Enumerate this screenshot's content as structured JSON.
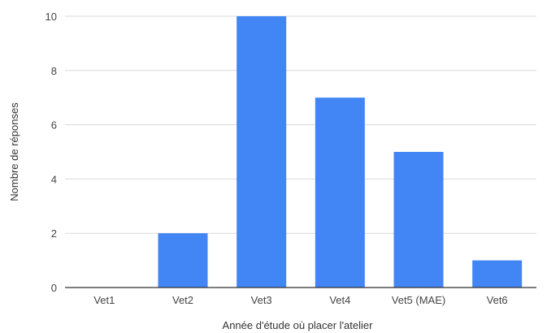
{
  "chart_data": {
    "type": "bar",
    "title": "",
    "xlabel": "Année d'étude où placer l'atelier",
    "ylabel": "Nombre de réponses",
    "categories": [
      "Vet1",
      "Vet2",
      "Vet3",
      "Vet4",
      "Vet5 (MAE)",
      "Vet6"
    ],
    "series": [
      {
        "values": [
          0,
          2,
          10,
          7,
          5,
          1
        ]
      }
    ],
    "ylim": [
      0,
      10
    ],
    "yticks": [
      0,
      2,
      4,
      6,
      8,
      10
    ],
    "grid": true,
    "legend": "none",
    "bar_color": "#4285f4",
    "grid_color": "#d9d9d9",
    "baseline_color": "#333333"
  }
}
